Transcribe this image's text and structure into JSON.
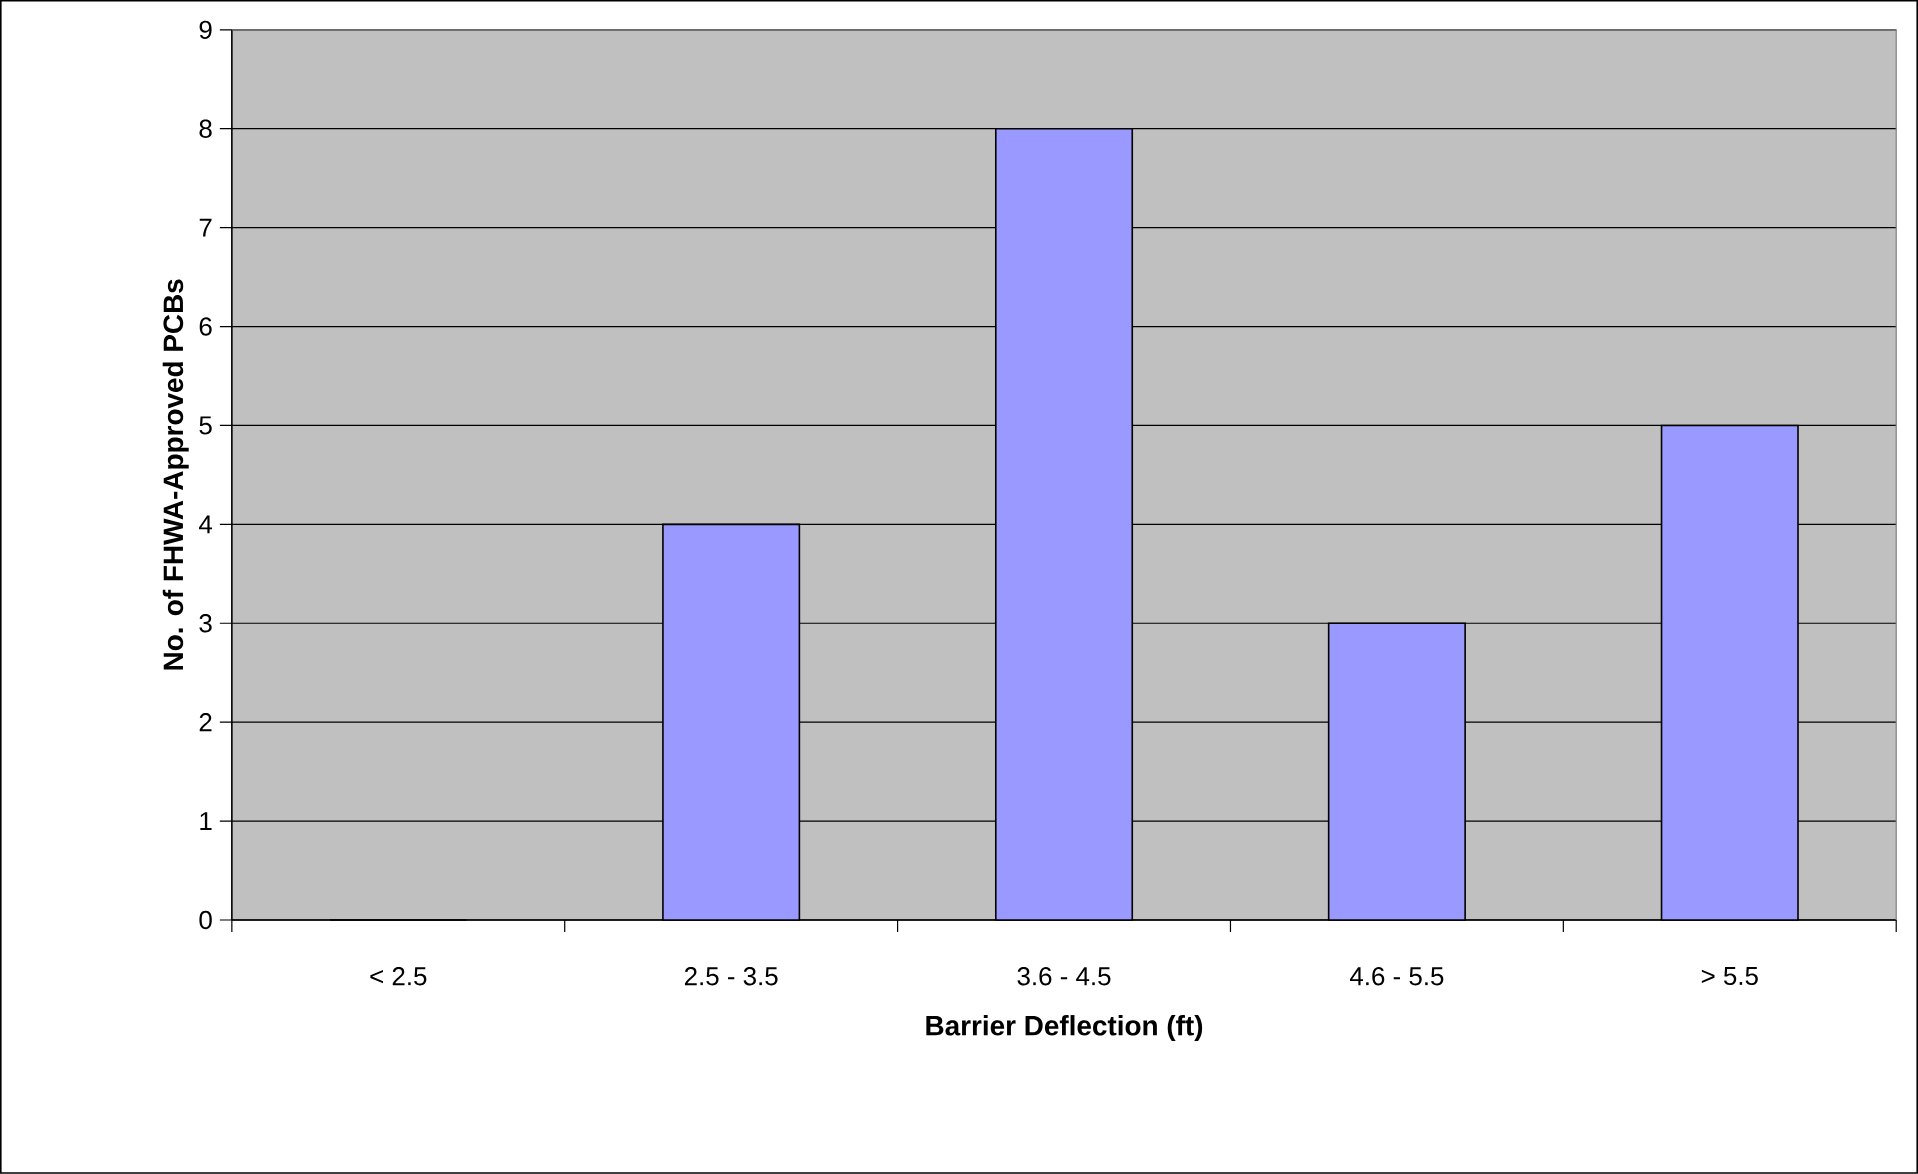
{
  "chart_data": {
    "type": "bar",
    "xlabel": "Barrier Deflection (ft)",
    "ylabel": "No. of FHWA-Approved PCBs",
    "categories": [
      "< 2.5",
      "2.5 - 3.5",
      "3.6 - 4.5",
      "4.6 - 5.5",
      "> 5.5"
    ],
    "values": [
      0,
      4,
      8,
      3,
      5
    ],
    "color": "#9999ff",
    "ylim": [
      0,
      9
    ],
    "yticks": [
      0,
      1,
      2,
      3,
      4,
      5,
      6,
      7,
      8,
      9
    ],
    "grid": "y"
  }
}
